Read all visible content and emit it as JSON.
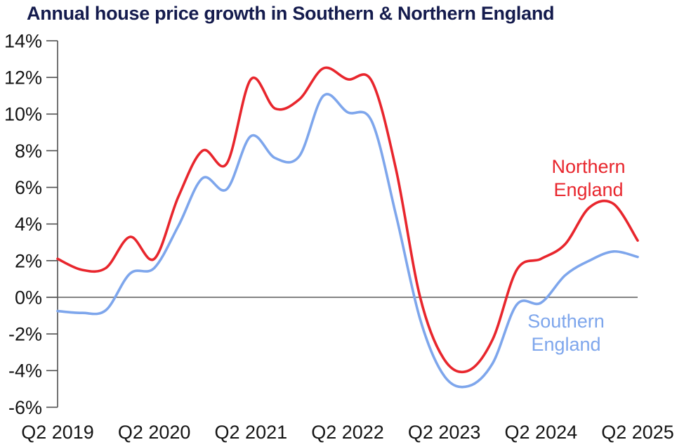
{
  "title": {
    "text": "Annual house price growth in Southern & Northern England",
    "color": "#141b4d"
  },
  "chart_data": {
    "type": "line",
    "title": "Annual house price growth in Southern & Northern England",
    "xlabel": "",
    "ylabel": "",
    "ylim": [
      -6,
      14
    ],
    "y_ticks": [
      {
        "v": 14,
        "label": "14%"
      },
      {
        "v": 12,
        "label": "12%"
      },
      {
        "v": 10,
        "label": "10%"
      },
      {
        "v": 8,
        "label": "8%"
      },
      {
        "v": 6,
        "label": "6%"
      },
      {
        "v": 4,
        "label": "4%"
      },
      {
        "v": 2,
        "label": "2%"
      },
      {
        "v": 0,
        "label": "0%"
      },
      {
        "v": -2,
        "label": "-2%"
      },
      {
        "v": -4,
        "label": "-4%"
      },
      {
        "v": -6,
        "label": "-6%"
      }
    ],
    "x_tick_labels": [
      "Q2 2019",
      "Q2 2020",
      "Q2 2021",
      "Q2 2022",
      "Q2 2023",
      "Q2 2024",
      "Q2 2025"
    ],
    "grid": "zero-line-only",
    "legend_position": "inline-annotations",
    "categories": [
      "Q2 2019",
      "Q3 2019",
      "Q4 2019",
      "Q1 2020",
      "Q2 2020",
      "Q3 2020",
      "Q4 2020",
      "Q1 2021",
      "Q2 2021",
      "Q3 2021",
      "Q4 2021",
      "Q1 2022",
      "Q2 2022",
      "Q3 2022",
      "Q4 2022",
      "Q1 2023",
      "Q2 2023",
      "Q3 2023",
      "Q4 2023",
      "Q1 2024",
      "Q2 2024",
      "Q3 2024",
      "Q4 2024",
      "Q1 2025",
      "Q2 2025"
    ],
    "series": [
      {
        "name": "Northern England",
        "color": "#e8262d",
        "values": [
          2.1,
          1.5,
          1.6,
          3.3,
          2.1,
          5.5,
          8.0,
          7.3,
          11.9,
          10.3,
          10.8,
          12.5,
          11.9,
          11.8,
          7.0,
          0.0,
          -3.4,
          -4.0,
          -2.3,
          1.5,
          2.1,
          2.9,
          4.9,
          5.1,
          3.1
        ]
      },
      {
        "name": "Southern England",
        "color": "#7ea6ec",
        "values": [
          -0.75,
          -0.85,
          -0.7,
          1.3,
          1.6,
          3.9,
          6.5,
          5.9,
          8.8,
          7.6,
          7.7,
          11.0,
          10.1,
          9.6,
          4.5,
          -1.2,
          -4.3,
          -4.85,
          -3.6,
          -0.4,
          -0.3,
          1.2,
          2.0,
          2.5,
          2.2
        ]
      }
    ],
    "annotations": [
      {
        "lines": [
          "Northern",
          "England"
        ],
        "color": "#e8262d"
      },
      {
        "lines": [
          "Southern",
          "England"
        ],
        "color": "#7ea6ec"
      }
    ]
  },
  "axes": {
    "axis_line_color": "#4f4f4f",
    "zero_line_color": "#5a5a5a",
    "tick_label_color": "#141414"
  }
}
